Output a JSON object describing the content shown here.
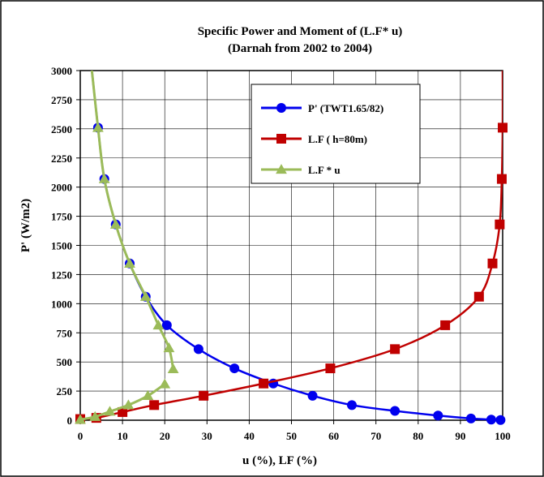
{
  "chart_data": {
    "type": "scatter",
    "title": "Specific Power and Moment of (L.F* u)",
    "subtitle": "(Darnah from 2002 to 2004)",
    "xlabel": "u (%), LF (%)",
    "ylabel": "P' (W/m2)",
    "xlim": [
      0,
      100
    ],
    "ylim": [
      0,
      3000
    ],
    "xticks": [
      0,
      10,
      20,
      30,
      40,
      50,
      60,
      70,
      80,
      90,
      100
    ],
    "yticks": [
      0,
      250,
      500,
      750,
      1000,
      1250,
      1500,
      1750,
      2000,
      2250,
      2500,
      2750,
      3000
    ],
    "grid": true,
    "legend_position": "top-right",
    "series": [
      {
        "name": "P' (TWT1.65/82)",
        "color": "#0000ee",
        "marker": "circle",
        "x": [
          4.2,
          5.7,
          8.4,
          11.7,
          15.5,
          20.5,
          28,
          36.5,
          45.7,
          55,
          64.3,
          74.5,
          84.7,
          92.5,
          97.3,
          99.5
        ],
        "y": [
          2510,
          2070,
          1680,
          1345,
          1060,
          815,
          610,
          445,
          315,
          210,
          130,
          80,
          40,
          15,
          5,
          2
        ]
      },
      {
        "name": "L.F  ( h=80m)",
        "color": "#c00000",
        "marker": "square",
        "x": [
          0,
          3.8,
          10,
          17.5,
          29.2,
          43.4,
          59.2,
          74.5,
          86.4,
          94.4,
          97.6,
          99.3,
          99.8,
          100
        ],
        "y": [
          10,
          20,
          70,
          130,
          210,
          315,
          445,
          610,
          815,
          1060,
          1345,
          1680,
          2070,
          2510
        ]
      },
      {
        "name": "L.F * u",
        "color": "#9bbb59",
        "marker": "triangle",
        "x": [
          0,
          3.5,
          7,
          11.4,
          16,
          20,
          21,
          22
        ],
        "y": [
          5,
          30,
          75,
          130,
          210,
          310,
          620,
          440
        ]
      }
    ]
  }
}
